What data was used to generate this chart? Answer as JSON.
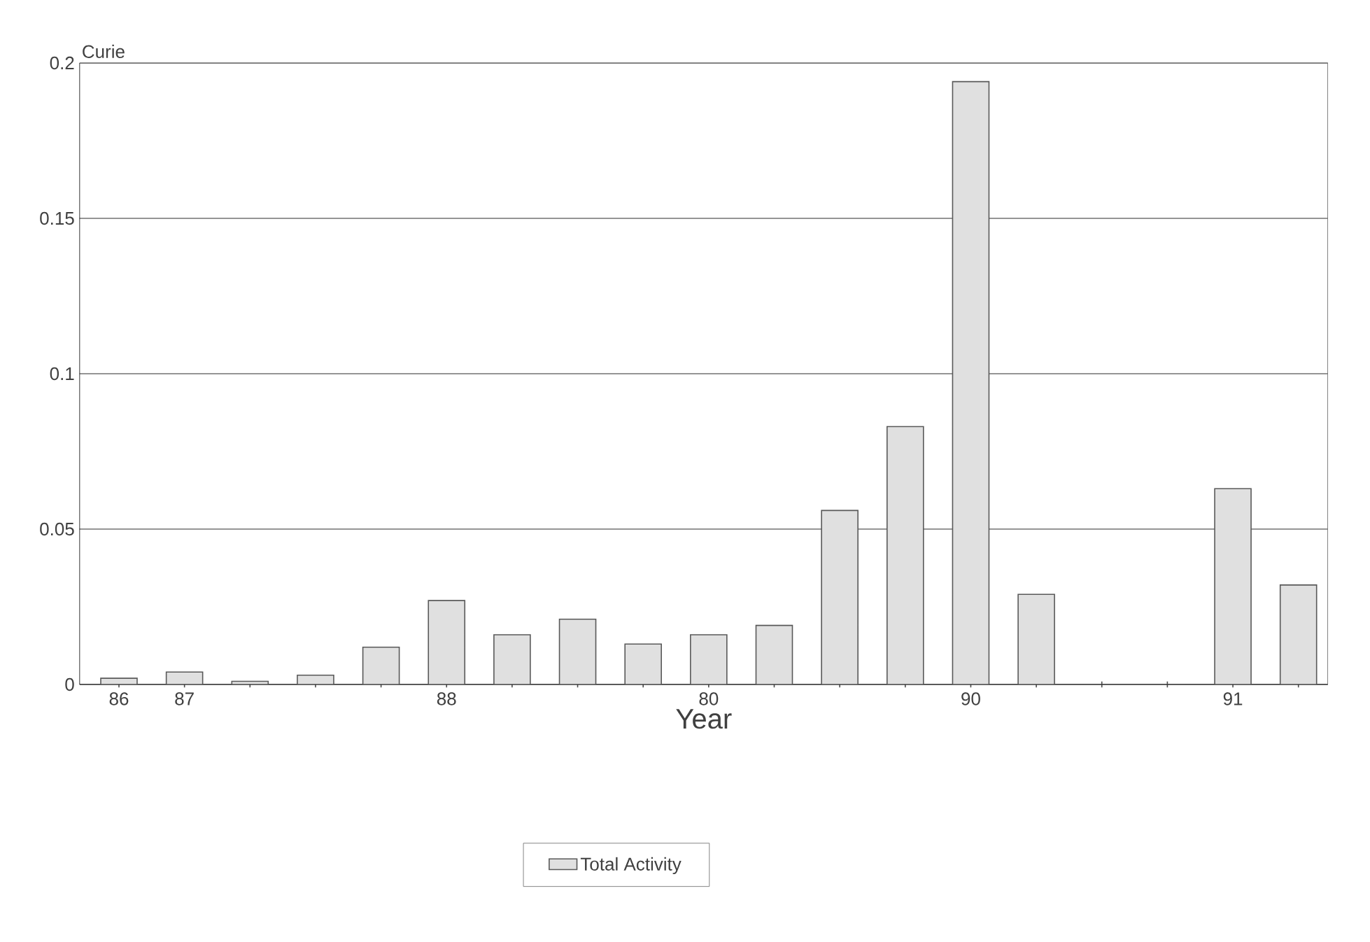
{
  "chart_data": {
    "type": "bar",
    "categories": [
      "86",
      "87",
      null,
      null,
      null,
      "88",
      null,
      null,
      null,
      "80",
      null,
      null,
      null,
      "90",
      null,
      null,
      null,
      "91",
      null
    ],
    "series": [
      {
        "name": "Total Activity",
        "color": "#e0e0e0",
        "values": [
          0.002,
          0.004,
          0.001,
          0.003,
          0.012,
          0.027,
          0.016,
          0.021,
          0.013,
          0.016,
          0.019,
          0.056,
          0.083,
          0.194,
          0.029,
          0,
          0,
          0.063,
          0.032
        ]
      }
    ],
    "xlabel": "Year",
    "ylabel": "Curie",
    "ylim": [
      0,
      0.2
    ],
    "yticks": [
      0,
      0.05,
      0.1,
      0.15,
      0.2
    ],
    "grid": "y",
    "legend": "bottom"
  }
}
